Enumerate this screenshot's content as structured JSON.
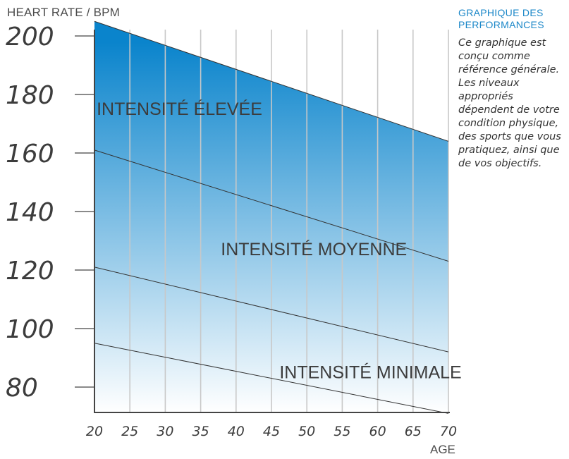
{
  "side_panel": {
    "title": "GRAPHIQUE DES PERFORMANCES",
    "body": "Ce graphique est conçu comme référence générale. Les niveaux appropriés dépendent de votre condition physique, des sports que vous pratiquez, ainsi que de vos objectifs."
  },
  "chart_data": {
    "type": "area",
    "ylabel": "HEART RATE / BPM",
    "xlabel": "AGE",
    "x_ticks": [
      20,
      25,
      30,
      35,
      40,
      45,
      50,
      55,
      60,
      65,
      70
    ],
    "y_ticks": [
      80,
      100,
      120,
      140,
      160,
      180,
      200
    ],
    "xlim": [
      20,
      70
    ],
    "ylim": [
      70,
      210
    ],
    "vertical_grid": true,
    "fill_gradient": {
      "top": "#0a84cc",
      "bottom": "#ffffff"
    },
    "series": [
      {
        "name": "",
        "x": [
          20,
          70
        ],
        "y": [
          205,
          164
        ]
      },
      {
        "name": "",
        "x": [
          20,
          70
        ],
        "y": [
          161,
          123
        ]
      },
      {
        "name": "",
        "x": [
          20,
          70
        ],
        "y": [
          121,
          92
        ]
      },
      {
        "name": "",
        "x": [
          20,
          70
        ],
        "y": [
          95,
          71
        ]
      }
    ],
    "zones": [
      {
        "label": "INTENSITÉ ÉLEVÉE",
        "x": 32,
        "y": 175
      },
      {
        "label": "INTENSITÉ MOYENNE",
        "x": 51,
        "y": 127
      },
      {
        "label": "INTENSITÉ MINIMALE",
        "x": 59,
        "y": 85
      }
    ]
  }
}
